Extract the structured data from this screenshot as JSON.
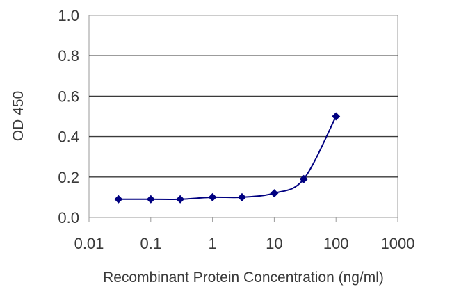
{
  "chart_data": {
    "type": "line",
    "title": "",
    "xlabel": "Recombinant Protein Concentration (ng/ml)",
    "ylabel": "OD 450",
    "x_scale": "log",
    "xlim": [
      0.01,
      1000
    ],
    "ylim": [
      0.0,
      1.0
    ],
    "x_ticks": [
      0.01,
      0.1,
      1,
      10,
      100,
      1000
    ],
    "x_tick_labels": [
      "0.01",
      "0.1",
      "1",
      "10",
      "100",
      "1000"
    ],
    "y_ticks": [
      0.0,
      0.2,
      0.4,
      0.6,
      0.8,
      1.0
    ],
    "y_tick_labels": [
      "0.0",
      "0.2",
      "0.4",
      "0.6",
      "0.8",
      "1.0"
    ],
    "grid": "horizontal",
    "legend": "none",
    "series": [
      {
        "x": [
          0.03,
          0.1,
          0.3,
          1,
          3,
          10,
          30,
          100
        ],
        "y": [
          0.09,
          0.09,
          0.09,
          0.1,
          0.1,
          0.12,
          0.19,
          0.5
        ],
        "marker": "diamond",
        "color": "#000080"
      }
    ]
  }
}
